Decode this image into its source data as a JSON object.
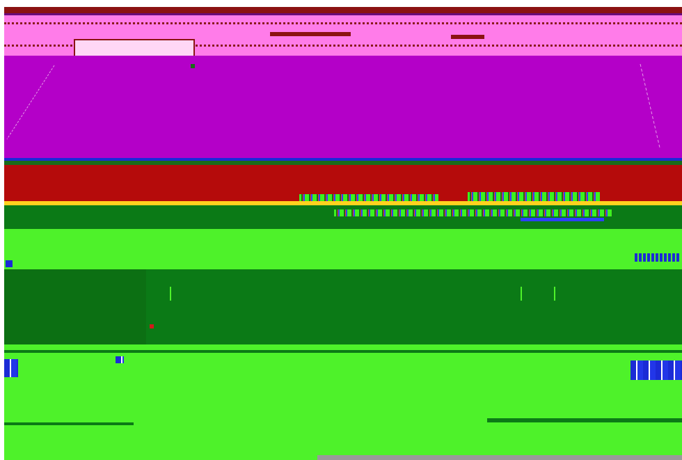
{
  "colors": {
    "topbar": "#8b1212",
    "top_pink": "#ff7ce9",
    "canvas_purple": "#b400c8",
    "red_band": "#b50b0b",
    "yellow_line": "#ffd21f",
    "green_dark": "#0b7a16",
    "green_light": "#4ef22a",
    "blue_accent": "#1b2bd6",
    "gray_strip": "#9a9a9a"
  }
}
